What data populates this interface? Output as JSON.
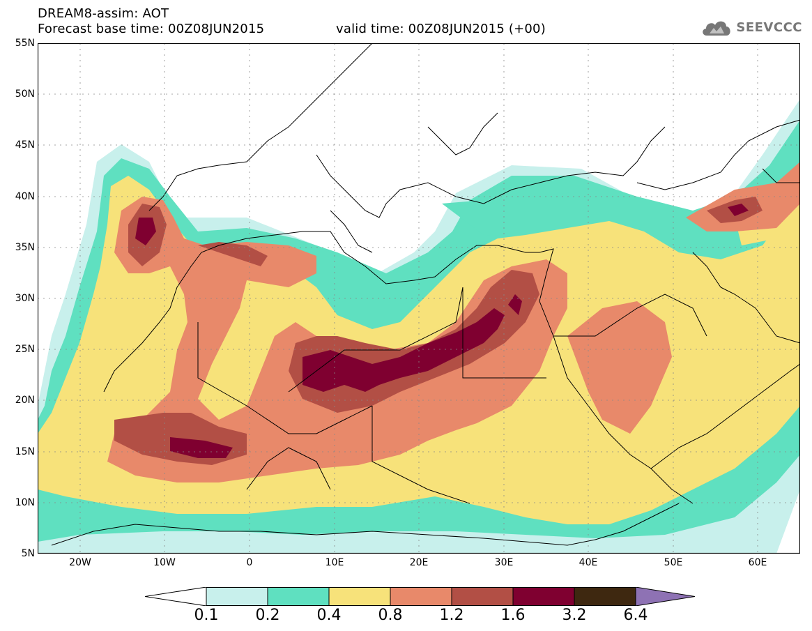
{
  "header": {
    "title_line1": "DREAM8-assim: AOT",
    "title_line2": "Forecast base time: 00Z08JUN2015",
    "valid_time": "valid time: 00Z08JUN2015 (+00)",
    "logo_text": "SEEVCCC",
    "logo_icon": "cloud-logo-icon"
  },
  "map": {
    "projection": "lat-lon",
    "lon_range": [
      -25,
      65
    ],
    "lat_range": [
      5,
      55
    ],
    "lat_labels": [
      "55N",
      "50N",
      "45N",
      "40N",
      "35N",
      "30N",
      "25N",
      "20N",
      "15N",
      "10N",
      "5N"
    ],
    "lon_labels": [
      "20W",
      "10W",
      "0",
      "10E",
      "20E",
      "30E",
      "40E",
      "50E",
      "60E"
    ]
  },
  "colorbar": {
    "labels": [
      "0.1",
      "0.2",
      "0.4",
      "0.8",
      "1.2",
      "1.6",
      "3.2",
      "6.4"
    ],
    "colors": [
      "#ffffff",
      "#c8f0ec",
      "#5fe0c0",
      "#f7e27a",
      "#e8896a",
      "#b24f45",
      "#7f0030",
      "#3e2810",
      "#8e72b4"
    ]
  },
  "palette": {
    "c01": "#c8f0ec",
    "c02": "#5fe0c0",
    "c04": "#f7e27a",
    "c08": "#e8896a",
    "c12": "#b24f45",
    "c16": "#7f0030"
  }
}
